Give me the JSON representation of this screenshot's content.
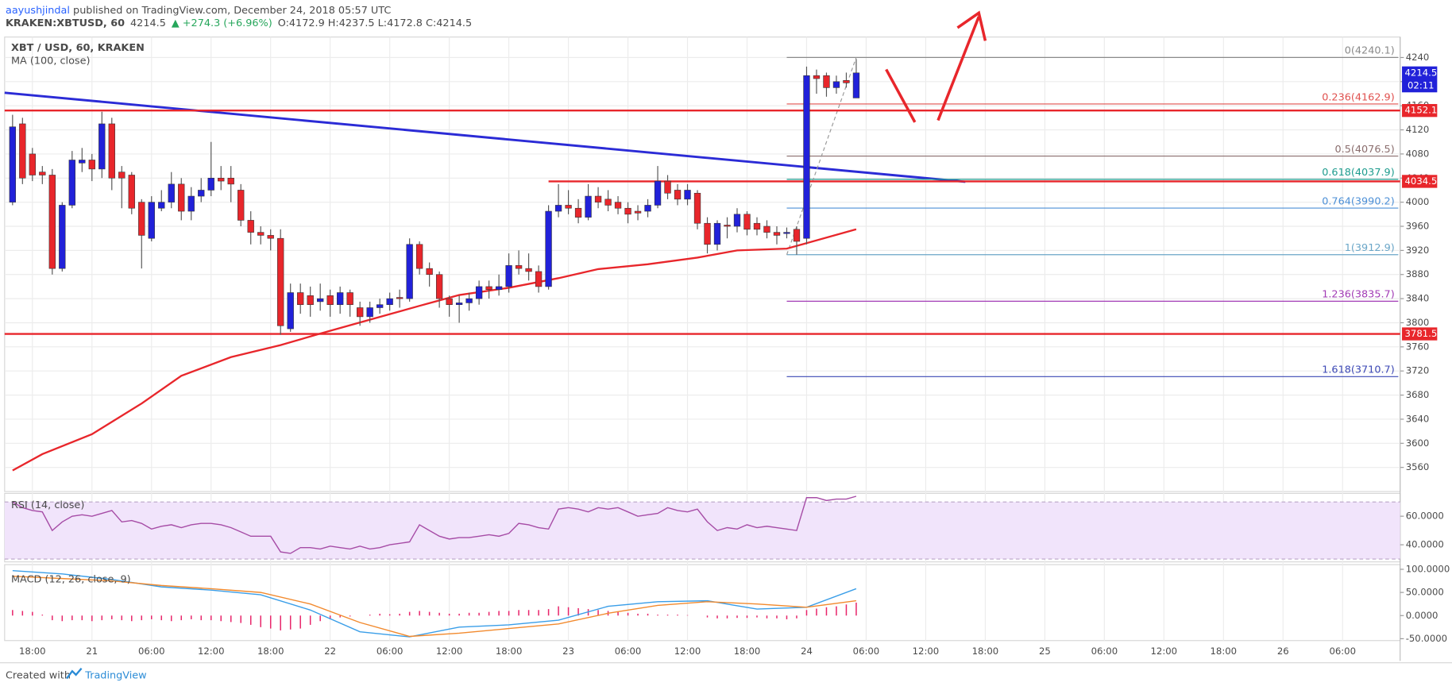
{
  "header": {
    "author": "aayushjindal",
    "published": " published on TradingView.com, December 24, 2018 05:57 UTC",
    "symbol": "KRAKEN:XBTUSD, 60",
    "last": "4214.5",
    "change": "▲ +274.3 (+6.96%)",
    "ohlc": "O:4172.9 H:4237.5 L:4172.8 C:4214.5"
  },
  "footer": {
    "created": "Created with",
    "brand": "TradingView"
  },
  "chart_data": {
    "type": "candlestick",
    "title": "XBT / USD, 60, KRAKEN",
    "up_color": "#2121d9",
    "down_color": "#e8262b",
    "grid": true,
    "xlim": [
      -0.8,
      139.8
    ],
    "ylim": [
      3520,
      4274
    ],
    "yticks": [
      3560,
      3600,
      3640,
      3680,
      3720,
      3760,
      3800,
      3840,
      3880,
      3920,
      3960,
      4000,
      4040,
      4080,
      4120,
      4160,
      4200,
      4240
    ],
    "xticks": [
      {
        "value": 2,
        "label": "18:00"
      },
      {
        "value": 8,
        "label": "21"
      },
      {
        "value": 14,
        "label": "06:00"
      },
      {
        "value": 20,
        "label": "12:00"
      },
      {
        "value": 26,
        "label": "18:00"
      },
      {
        "value": 32,
        "label": "22"
      },
      {
        "value": 38,
        "label": "06:00"
      },
      {
        "value": 44,
        "label": "12:00"
      },
      {
        "value": 50,
        "label": "18:00"
      },
      {
        "value": 56,
        "label": "23"
      },
      {
        "value": 62,
        "label": "06:00"
      },
      {
        "value": 68,
        "label": "12:00"
      },
      {
        "value": 74,
        "label": "18:00"
      },
      {
        "value": 80,
        "label": "24"
      },
      {
        "value": 86,
        "label": "06:00"
      },
      {
        "value": 92,
        "label": "12:00"
      },
      {
        "value": 98,
        "label": "18:00"
      },
      {
        "value": 104,
        "label": "25"
      },
      {
        "value": 110,
        "label": "06:00"
      },
      {
        "value": 116,
        "label": "12:00"
      },
      {
        "value": 122,
        "label": "18:00"
      },
      {
        "value": 128,
        "label": "26"
      },
      {
        "value": 134,
        "label": "06:00"
      }
    ],
    "open": [
      4000,
      4130,
      4080,
      4050,
      4045,
      3890,
      3995,
      4065,
      4070,
      4055,
      4130,
      4050,
      4045,
      4000,
      3940,
      3990,
      4000,
      4030,
      3985,
      4010,
      4020,
      4040,
      4040,
      4020,
      3970,
      3950,
      3945,
      3940,
      3790,
      3850,
      3845,
      3835,
      3845,
      3830,
      3850,
      3825,
      3810,
      3825,
      3830,
      3842,
      3840,
      3930,
      3890,
      3880,
      3840,
      3830,
      3833,
      3840,
      3860,
      3855,
      3860,
      3895,
      3890,
      3885,
      3860,
      3985,
      3995,
      3990,
      3975,
      4010,
      4005,
      4000,
      3990,
      3985,
      3985,
      3995,
      4035,
      4020,
      4005,
      4015,
      3965,
      3930,
      3962,
      3960,
      3980,
      3965,
      3960,
      3950,
      3948,
      3955,
      3940,
      4210,
      4210,
      4190,
      4202,
      4172.9
    ],
    "high": [
      4145,
      4140,
      4090,
      4060,
      4055,
      4000,
      4085,
      4090,
      4080,
      4150,
      4140,
      4060,
      4050,
      4005,
      4010,
      4020,
      4050,
      4040,
      4025,
      4040,
      4100,
      4060,
      4060,
      4030,
      3985,
      3960,
      3955,
      3955,
      3865,
      3865,
      3860,
      3865,
      3855,
      3860,
      3855,
      3835,
      3835,
      3840,
      3850,
      3855,
      3940,
      3935,
      3900,
      3885,
      3845,
      3845,
      3850,
      3870,
      3870,
      3880,
      3915,
      3920,
      3915,
      3895,
      3995,
      4030,
      4020,
      4005,
      4030,
      4025,
      4020,
      4010,
      4000,
      3995,
      4005,
      4060,
      4045,
      4030,
      4030,
      4020,
      3975,
      3970,
      3975,
      3990,
      3985,
      3975,
      3970,
      3960,
      3958,
      3960,
      4225,
      4220,
      4215,
      4210,
      4215,
      4237.5
    ],
    "low": [
      3995,
      4030,
      4035,
      4030,
      3880,
      3885,
      3990,
      4050,
      4035,
      4040,
      4020,
      3990,
      3980,
      3890,
      3935,
      3985,
      3990,
      3970,
      3970,
      4000,
      4010,
      4020,
      4000,
      3960,
      3930,
      3930,
      3920,
      3780,
      3785,
      3815,
      3810,
      3820,
      3810,
      3815,
      3810,
      3795,
      3800,
      3815,
      3820,
      3825,
      3835,
      3880,
      3860,
      3825,
      3810,
      3800,
      3820,
      3830,
      3840,
      3845,
      3850,
      3880,
      3870,
      3850,
      3855,
      3975,
      3980,
      3965,
      3970,
      3990,
      3985,
      3980,
      3965,
      3970,
      3975,
      3990,
      4005,
      3995,
      3995,
      3955,
      3915,
      3920,
      3940,
      3950,
      3945,
      3945,
      3940,
      3930,
      3940,
      3912.9,
      3930,
      4180,
      4175,
      4180,
      4190,
      4172.8
    ],
    "close": [
      4125,
      4040,
      4045,
      4045,
      3890,
      3995,
      4070,
      4070,
      4055,
      4130,
      4040,
      4040,
      3990,
      3945,
      4000,
      4000,
      4030,
      3985,
      4010,
      4020,
      4040,
      4035,
      4030,
      3970,
      3950,
      3945,
      3940,
      3795,
      3850,
      3830,
      3830,
      3840,
      3830,
      3850,
      3830,
      3810,
      3825,
      3830,
      3840,
      3840,
      3930,
      3890,
      3880,
      3840,
      3830,
      3833,
      3840,
      3860,
      3855,
      3860,
      3895,
      3890,
      3885,
      3860,
      3985,
      3995,
      3990,
      3975,
      4010,
      4000,
      3995,
      3990,
      3980,
      3982,
      3995,
      4035,
      4015,
      4005,
      4020,
      3965,
      3930,
      3965,
      3960,
      3980,
      3955,
      3955,
      3950,
      3945,
      3950,
      3935,
      4210,
      4205,
      4190,
      4200,
      4198,
      4214.5
    ],
    "timer": "02:11",
    "ma": {
      "name": "MA (100, close)",
      "color": "#e8262b",
      "x": [
        0,
        3,
        8,
        13,
        17,
        22,
        27,
        31,
        36,
        41,
        45,
        50,
        55,
        59,
        64,
        69,
        73,
        78,
        80,
        85
      ],
      "values": [
        3555,
        3582,
        3615,
        3666,
        3712,
        3743,
        3763,
        3782,
        3805,
        3828,
        3846,
        3858,
        3874,
        3889,
        3897,
        3908,
        3920,
        3923,
        3932,
        3955
      ]
    },
    "trendline": {
      "color": "#2b2bd6",
      "x": [
        -0.8,
        96
      ],
      "values": [
        4181.5,
        4033.8
      ]
    },
    "hlines": [
      {
        "price": 4152.1,
        "color": "#e8262b"
      },
      {
        "price": 4034.5,
        "color": "#e8262b",
        "from": 54
      },
      {
        "price": 3781.5,
        "color": "#e8262b"
      }
    ],
    "fib_from": 78,
    "fib_levels": [
      {
        "value": 4240.1,
        "label": "0(4240.1)",
        "color": "#8a8a8a"
      },
      {
        "value": 4162.9,
        "label": "0.236(4162.9)",
        "color": "#e0504e"
      },
      {
        "value": 4076.5,
        "label": "0.5(4076.5)",
        "color": "#8a6d6d"
      },
      {
        "value": 4037.9,
        "label": "0.618(4037.9)",
        "color": "#1f9c8e"
      },
      {
        "value": 3990.2,
        "label": "0.764(3990.2)",
        "color": "#4c8fd6"
      },
      {
        "value": 3912.9,
        "label": "1(3912.9)",
        "color": "#6aa6c8"
      },
      {
        "value": 3835.7,
        "label": "1.236(3835.7)",
        "color": "#a23bb5"
      },
      {
        "value": 3710.7,
        "label": "1.618(3710.7)",
        "color": "#3c48b5"
      }
    ],
    "rsi": {
      "name": "RSI (14, close)",
      "color": "#a64ca6",
      "band": [
        30,
        70
      ],
      "ylim": [
        28,
        76
      ],
      "yticks": [
        {
          "value": 40,
          "label": "40.0000"
        },
        {
          "value": 60,
          "label": "60.0000"
        }
      ],
      "values": [
        70,
        66,
        64,
        63,
        50,
        56,
        60,
        61,
        60,
        62,
        64,
        56,
        57,
        55,
        51,
        53,
        54,
        52,
        54,
        55,
        55,
        54,
        52,
        49,
        46,
        46,
        46,
        35,
        34,
        38,
        38,
        37,
        39,
        38,
        37,
        39,
        37,
        38,
        40,
        41,
        42,
        54,
        50,
        46,
        44,
        45,
        45,
        46,
        47,
        46,
        48,
        55,
        54,
        52,
        51,
        65,
        66,
        65,
        63,
        66,
        65,
        66,
        63,
        60,
        61,
        62,
        66,
        64,
        63,
        65,
        56,
        50,
        52,
        51,
        54,
        52,
        53,
        52,
        51,
        50,
        73,
        73,
        71,
        72,
        72,
        74
      ]
    },
    "macd": {
      "name": "MACD (12, 26, close, 9)",
      "ylim": [
        -54,
        110
      ],
      "yticks": [
        {
          "value": 100,
          "label": "100.0000"
        },
        {
          "value": 50,
          "label": "50.0000"
        },
        {
          "value": 0,
          "label": "0.0000"
        },
        {
          "value": -50,
          "label": "-50.0000"
        }
      ],
      "x": [
        0,
        5,
        10,
        15,
        20,
        25,
        30,
        35,
        40,
        45,
        50,
        55,
        60,
        65,
        70,
        75,
        80,
        85
      ],
      "series": [
        {
          "color": "#3a9ee8",
          "values": [
            97,
            90,
            78,
            62,
            55,
            45,
            12,
            -35,
            -46,
            -25,
            -20,
            -10,
            20,
            30,
            32,
            14,
            18,
            58
          ]
        },
        {
          "color": "#f28a2e",
          "values": [
            85,
            80,
            75,
            65,
            58,
            50,
            25,
            -15,
            -45,
            -38,
            -28,
            -18,
            5,
            22,
            30,
            25,
            18,
            32
          ]
        }
      ],
      "hist_color": "#e8266b",
      "histogram": [
        12,
        10,
        8,
        2,
        -10,
        -12,
        -10,
        -10,
        -12,
        -10,
        -8,
        -10,
        -12,
        -10,
        -8,
        -10,
        -12,
        -10,
        -8,
        -10,
        -10,
        -12,
        -14,
        -16,
        -20,
        -25,
        -28,
        -32,
        -30,
        -28,
        -20,
        -12,
        -8,
        -4,
        -2,
        0,
        2,
        4,
        3,
        4,
        8,
        10,
        8,
        6,
        4,
        4,
        6,
        6,
        8,
        10,
        10,
        12,
        12,
        12,
        14,
        20,
        18,
        16,
        14,
        12,
        10,
        8,
        6,
        4,
        4,
        2,
        2,
        2,
        1,
        0,
        -4,
        -6,
        -6,
        -5,
        -5,
        -4,
        -6,
        -6,
        -8,
        -6,
        12,
        15,
        18,
        20,
        24,
        28
      ]
    }
  }
}
